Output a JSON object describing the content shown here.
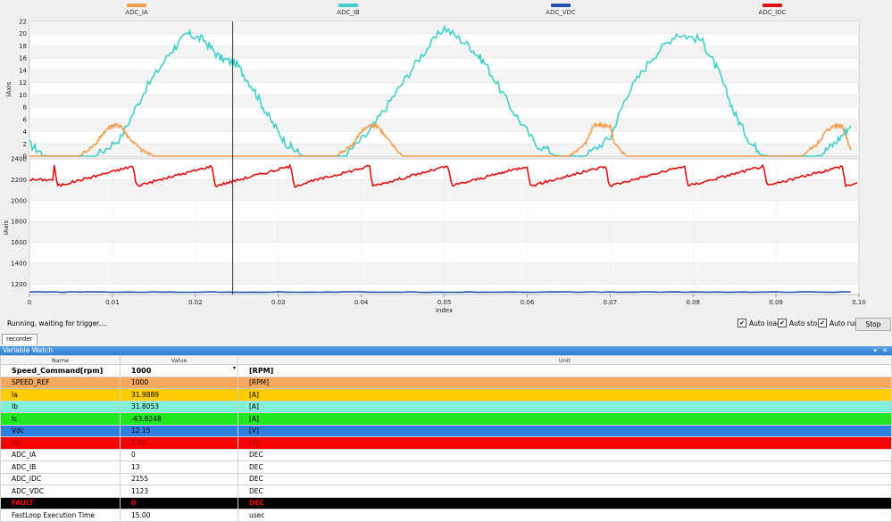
{
  "chart": {
    "legend": [
      {
        "name": "ADC_IA",
        "color": "#f0a050"
      },
      {
        "name": "ADC_IB",
        "color": "#40d0c8"
      },
      {
        "name": "ADC_VDC",
        "color": "#2050b0"
      },
      {
        "name": "ADC_IDC",
        "color": "#e01010"
      }
    ],
    "x_label": "Index",
    "y_label_top": "IAxis",
    "y_label_bottom": "IAxis",
    "status": "Running, waiting for trigger....",
    "cursor_x": 0.0245
  },
  "chart_data": [
    {
      "type": "line",
      "panel": "top",
      "ylabel": "IAxis",
      "ylim": [
        0,
        22
      ],
      "y_ticks": [
        0,
        2,
        4,
        6,
        8,
        10,
        12,
        14,
        16,
        18,
        20,
        22
      ],
      "xlim": [
        0,
        0.1
      ],
      "x_ticks": [
        "0",
        "0.01",
        "0.02",
        "0.03",
        "0.04",
        "0.05",
        "0.06",
        "0.07",
        "0.08",
        "0.09",
        "0.10"
      ],
      "series": [
        {
          "name": "ADC_IB",
          "x": [
            0,
            0.002,
            0.004,
            0.008,
            0.011,
            0.014,
            0.017,
            0.019,
            0.021,
            0.023,
            0.025,
            0.027,
            0.029,
            0.031,
            0.033,
            0.035,
            0.038,
            0.041,
            0.044,
            0.047,
            0.05,
            0.053,
            0.055,
            0.058,
            0.061,
            0.064,
            0.067,
            0.07,
            0.072,
            0.075,
            0.078,
            0.081,
            0.083,
            0.085,
            0.087,
            0.089,
            0.092,
            0.095,
            0.097,
            0.099
          ],
          "y": [
            2,
            0,
            0,
            0,
            3,
            11,
            17,
            20,
            19,
            16,
            15,
            11,
            6,
            2,
            0,
            0,
            0,
            4,
            10,
            16,
            21,
            18,
            15,
            8,
            2,
            0,
            0,
            3,
            10,
            16,
            20,
            19,
            14,
            7,
            2,
            0,
            0,
            0,
            2,
            5
          ]
        },
        {
          "name": "ADC_IA",
          "x": [
            0,
            0.006,
            0.008,
            0.009,
            0.01,
            0.011,
            0.012,
            0.0135,
            0.015,
            0.02,
            0.037,
            0.039,
            0.04,
            0.041,
            0.042,
            0.043,
            0.045,
            0.05,
            0.065,
            0.067,
            0.068,
            0.069,
            0.07,
            0.0705,
            0.072,
            0.08,
            0.093,
            0.095,
            0.096,
            0.097,
            0.098,
            0.099
          ],
          "y": [
            0,
            0,
            2,
            4,
            5,
            5,
            3,
            1,
            0,
            0,
            0,
            2,
            4,
            5,
            5,
            3,
            0,
            0,
            0,
            2,
            5,
            5,
            5,
            2,
            0,
            0,
            0,
            2,
            4,
            5,
            5,
            1
          ]
        }
      ]
    },
    {
      "type": "line",
      "panel": "bottom",
      "ylabel": "IAxis",
      "ylim": [
        1100,
        2400
      ],
      "y_ticks": [
        1200,
        1400,
        1600,
        1800,
        2000,
        2200,
        2400
      ],
      "xlim": [
        0,
        0.1
      ],
      "series": [
        {
          "name": "ADC_IDC",
          "sawtooth": {
            "period": 0.0095,
            "start": 0.003,
            "low": 2140,
            "high": 2330,
            "base": 2200
          }
        },
        {
          "name": "ADC_VDC",
          "y_const": 1123
        }
      ]
    }
  ],
  "controls": {
    "auto_load": "Auto load",
    "auto_stop": "Auto stop",
    "auto_run": "Auto run",
    "stop": "Stop",
    "checked": "✔"
  },
  "tab": "recorder",
  "variable_watch": {
    "title": "Variable Watch",
    "window_controls": "▾ ✕",
    "columns": [
      "Name",
      "Value",
      "Unit"
    ],
    "rows": [
      {
        "name": "Speed_Command[rpm]",
        "value": "1000",
        "unit": "[RPM]",
        "bg": "#ffffff",
        "fg": "#000000"
      },
      {
        "name": "SPEED_REF",
        "value": "1000",
        "unit": "[RPM]",
        "bg": "#f6a85c",
        "fg": "#000000"
      },
      {
        "name": "Ia",
        "value": "31.9889",
        "unit": "[A]",
        "bg": "#ffcc00",
        "fg": "#000000"
      },
      {
        "name": "Ib",
        "value": "31.8053",
        "unit": "[A]",
        "bg": "#80f0d8",
        "fg": "#000000"
      },
      {
        "name": "Ic",
        "value": "-63.8248",
        "unit": "[A]",
        "bg": "#22e622",
        "fg": "#000000"
      },
      {
        "name": "Vdc",
        "value": "12.15",
        "unit": "[V]",
        "bg": "#2f7fe0",
        "fg": "#000000"
      },
      {
        "name": "Idc",
        "value": "5.90",
        "unit": "[A]",
        "bg": "#ff0000",
        "fg": "#8b0000"
      },
      {
        "name": "ADC_IA",
        "value": "0",
        "unit": "DEC",
        "bg": "#ffffff",
        "fg": "#000000"
      },
      {
        "name": "ADC_IB",
        "value": "13",
        "unit": "DEC",
        "bg": "#ffffff",
        "fg": "#000000"
      },
      {
        "name": "ADC_IDC",
        "value": "2155",
        "unit": "DEC",
        "bg": "#ffffff",
        "fg": "#000000"
      },
      {
        "name": "ADC_VDC",
        "value": "1123",
        "unit": "DEC",
        "bg": "#ffffff",
        "fg": "#000000"
      },
      {
        "name": "FAULT",
        "value": "0",
        "unit": "DEC",
        "bg": "#000000",
        "fg": "#ff0000"
      },
      {
        "name": "FastLoop Execution Time",
        "value": "15.00",
        "unit": "usec",
        "bg": "#ffffff",
        "fg": "#000000"
      }
    ]
  }
}
